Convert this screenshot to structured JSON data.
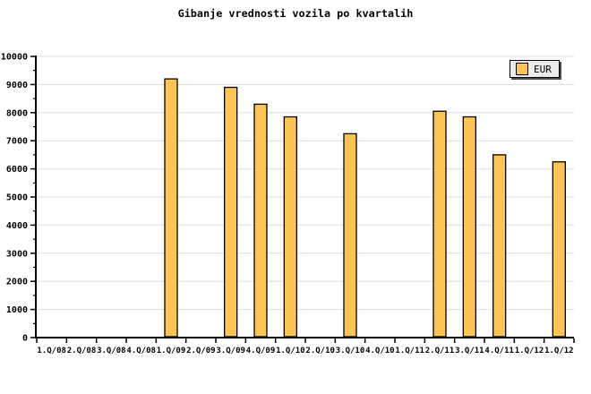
{
  "chart_data": {
    "type": "bar",
    "title": "Gibanje vrednosti vozila po kvartalih",
    "categories": [
      "1.Q/08",
      "2.Q/08",
      "3.Q/08",
      "4.Q/08",
      "1.Q/09",
      "2.Q/09",
      "3.Q/09",
      "4.Q/09",
      "1.Q/10",
      "2.Q/10",
      "3.Q/10",
      "4.Q/10",
      "1.Q/11",
      "2.Q/11",
      "3.Q/11",
      "4.Q/11",
      "1.Q/12",
      "1.Q/12"
    ],
    "series": [
      {
        "name": "EUR",
        "values": [
          null,
          null,
          null,
          null,
          9200,
          null,
          8900,
          8300,
          7850,
          null,
          7250,
          null,
          null,
          8050,
          7850,
          6500,
          null,
          6250
        ]
      }
    ],
    "xlabel": "",
    "ylabel": "",
    "ylim": [
      0,
      10000
    ],
    "y_ticks": [
      0,
      1000,
      2000,
      3000,
      4000,
      5000,
      6000,
      7000,
      8000,
      9000,
      10000
    ],
    "y_minor_step": 500,
    "grid": "horizontal",
    "legend_position": "top-right"
  },
  "legend": {
    "label": "EUR"
  },
  "colors": {
    "bar_fill": "#FCC355",
    "bar_border": "#000000",
    "gridline": "#DEDEDE",
    "axis": "#000000",
    "background": "#FFFFFF",
    "legend_bg": "#EBEBEB",
    "legend_shadow": "#4D4D4D",
    "text": "#000000"
  }
}
